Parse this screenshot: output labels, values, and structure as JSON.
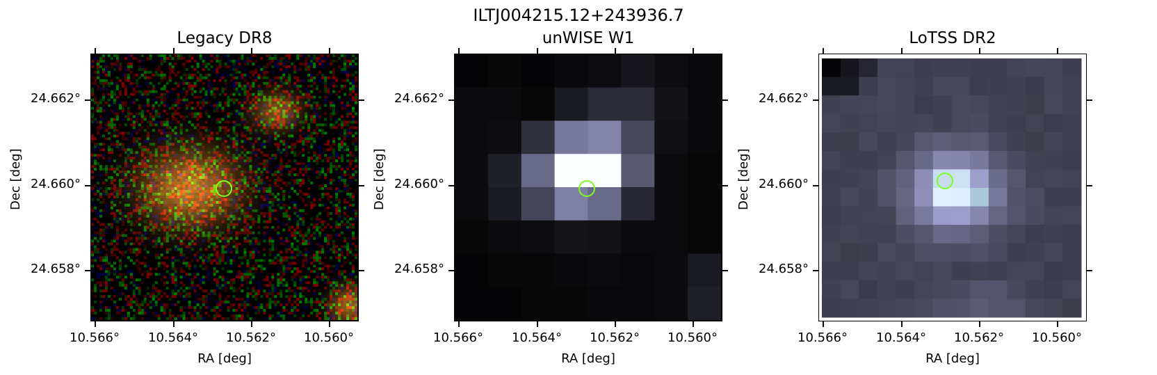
{
  "figure_title": "ILTJ004215.12+243936.7",
  "axes": {
    "xlabel": "RA [deg]",
    "ylabel": "Dec [deg]",
    "x_ticks": [
      "10.566°",
      "10.564°",
      "10.562°",
      "10.560°"
    ],
    "y_ticks": [
      "24.662°",
      "24.660°",
      "24.658°"
    ]
  },
  "panels": [
    {
      "title": "Legacy DR8",
      "colormap": "rgb-noise"
    },
    {
      "title": "unWISE W1",
      "colormap": "bone"
    },
    {
      "title": "LoTSS DR2",
      "colormap": "bone"
    }
  ],
  "marker": {
    "shape": "circle",
    "color": "#7dff1f"
  }
}
